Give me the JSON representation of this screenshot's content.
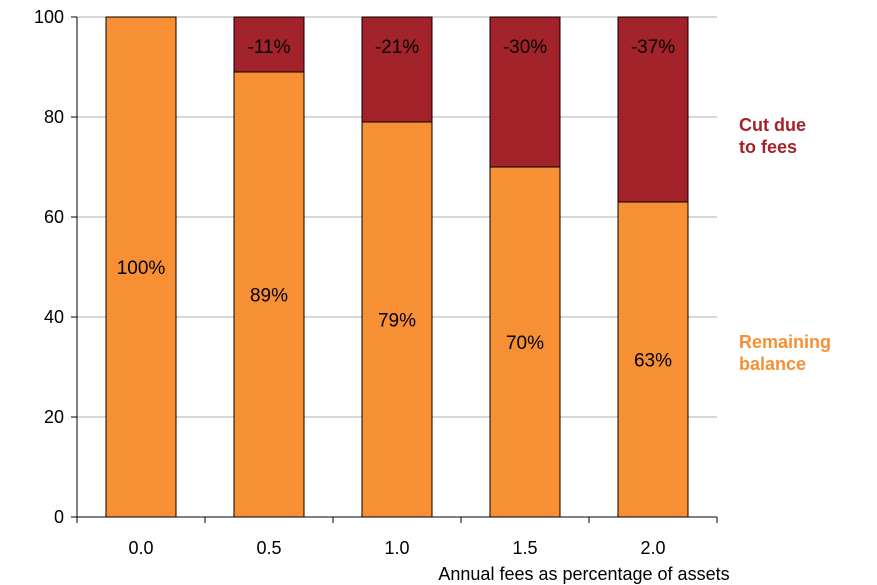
{
  "chart_data": {
    "type": "bar",
    "stacked": true,
    "categories": [
      "0.0",
      "0.5",
      "1.0",
      "1.5",
      "2.0"
    ],
    "series": [
      {
        "name": "Remaining balance",
        "values": [
          100,
          89,
          79,
          70,
          63
        ],
        "labels": [
          "100%",
          "89%",
          "79%",
          "70%",
          "63%"
        ],
        "color": "#F79034"
      },
      {
        "name": "Cut due to fees",
        "values": [
          0,
          11,
          21,
          30,
          37
        ],
        "labels": [
          "",
          "-11%",
          "-21%",
          "-30%",
          "-37%"
        ],
        "color": "#A3232A"
      }
    ],
    "xlabel": "Annual fees as percentage of assets",
    "ylabel": "",
    "ylim": [
      0,
      100
    ],
    "yticks": [
      0,
      20,
      40,
      60,
      80,
      100
    ],
    "grid": true,
    "legend": [
      {
        "lines": [
          "Cut due",
          "to fees"
        ],
        "color": "#A3232A"
      },
      {
        "lines": [
          "Remaining",
          "balance"
        ],
        "color": "#F79034"
      }
    ],
    "legend_position": "right"
  }
}
